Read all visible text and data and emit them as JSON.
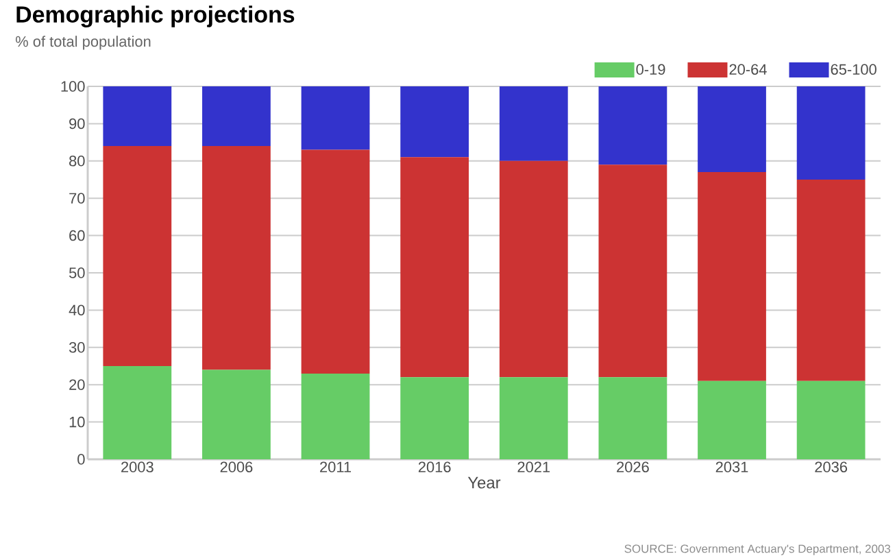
{
  "chart_data": {
    "type": "bar",
    "title": "Demographic projections",
    "subtitle": "% of total population",
    "xlabel": "Year",
    "categories": [
      "2003",
      "2006",
      "2011",
      "2016",
      "2021",
      "2026",
      "2031",
      "2036"
    ],
    "series": [
      {
        "name": "0-19",
        "color": "#66cc66",
        "values": [
          25,
          24,
          23,
          22,
          22,
          22,
          21,
          21
        ]
      },
      {
        "name": "20-64",
        "color": "#cc3333",
        "values": [
          59,
          60,
          60,
          59,
          58,
          57,
          56,
          54
        ]
      },
      {
        "name": "65-100",
        "color": "#3333cc",
        "values": [
          16,
          16,
          17,
          19,
          20,
          21,
          23,
          25
        ]
      }
    ],
    "stacked": true,
    "ylim": [
      0,
      100
    ],
    "yticks": [
      0,
      10,
      20,
      30,
      40,
      50,
      60,
      70,
      80,
      90,
      100
    ],
    "grid": "y",
    "legend": "top right",
    "annotations": [
      "SOURCE: Government Actuary's Department, 2003"
    ]
  }
}
